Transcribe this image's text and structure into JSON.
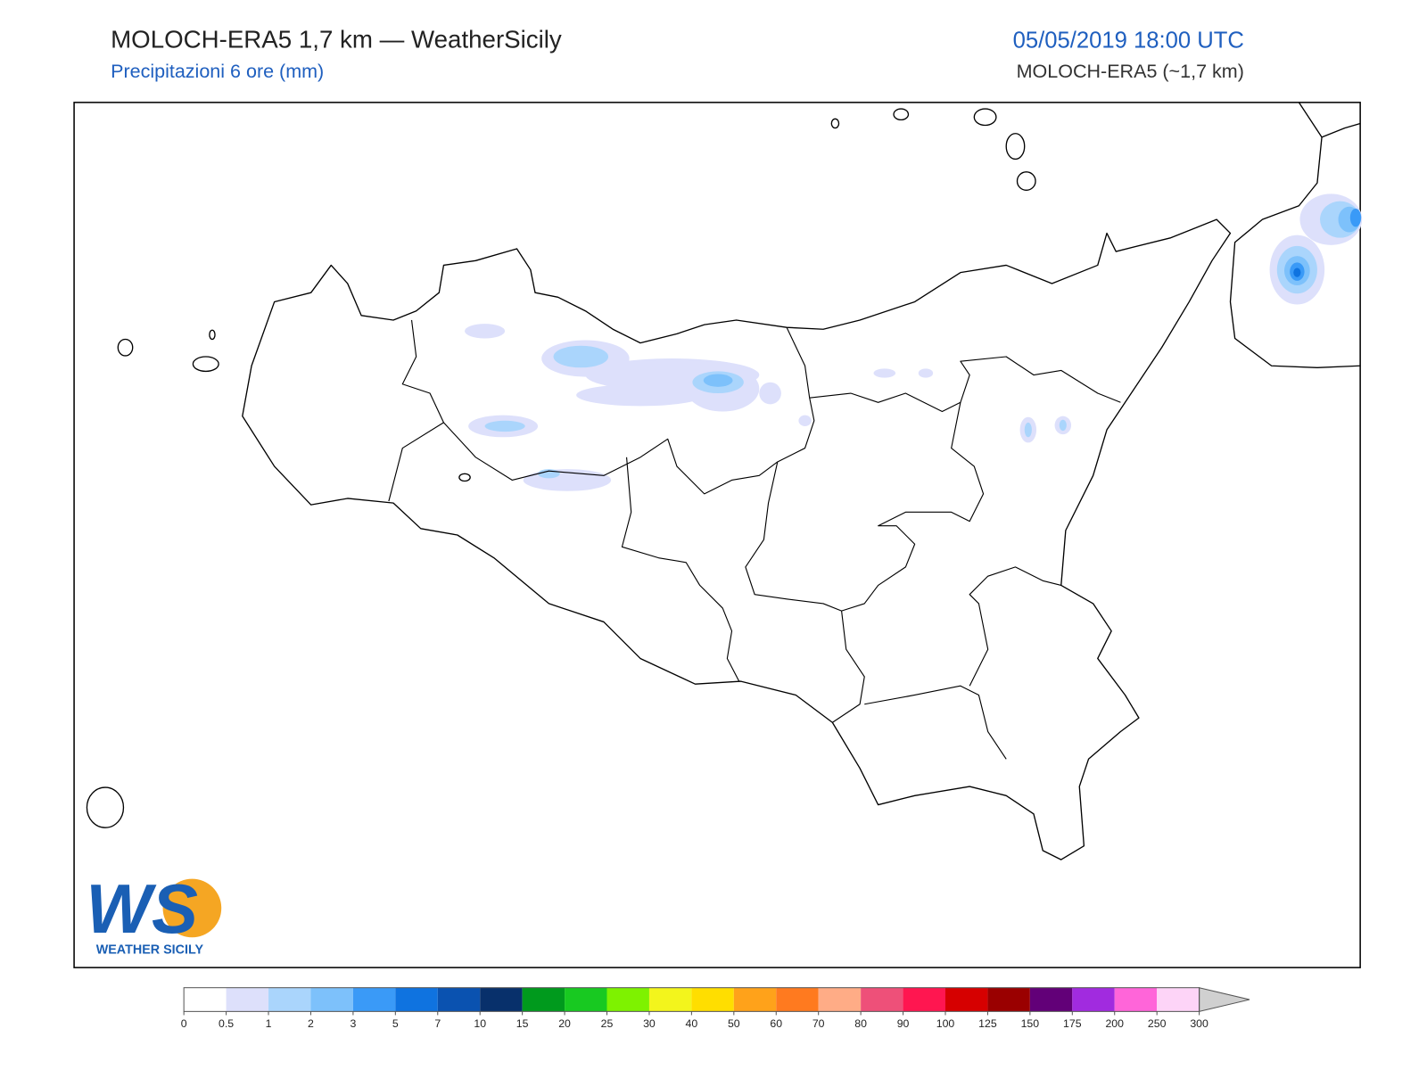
{
  "header": {
    "title": "MOLOCH-ERA5 1,7 km — WeatherSicily",
    "subtitle": "Precipitazioni 6 ore (mm)",
    "datetime": "05/05/2019 18:00 UTC",
    "model": "MOLOCH-ERA5 (~1,7 km)"
  },
  "logo": {
    "mark": "WS",
    "text": "WEATHER SICILY"
  },
  "colorbar": {
    "levels": [
      0,
      0.5,
      1,
      2,
      3,
      5,
      7,
      10,
      15,
      20,
      25,
      30,
      40,
      50,
      60,
      70,
      80,
      90,
      100,
      125,
      150,
      175,
      200,
      250,
      300
    ],
    "colors": [
      "#ffffff",
      "#dde0fb",
      "#aad5fc",
      "#7dc1fb",
      "#3a9af7",
      "#0f73e0",
      "#0a52b0",
      "#08306b",
      "#009a1d",
      "#18c921",
      "#7ef200",
      "#f3f51c",
      "#ffde00",
      "#ffa21a",
      "#ff7a1f",
      "#ffac86",
      "#ee5079",
      "#ff1650",
      "#d60000",
      "#9a0000",
      "#620078",
      "#a12bdf",
      "#ff65d9",
      "#fdd4f7"
    ],
    "over_color": "#d0d0d0"
  }
}
